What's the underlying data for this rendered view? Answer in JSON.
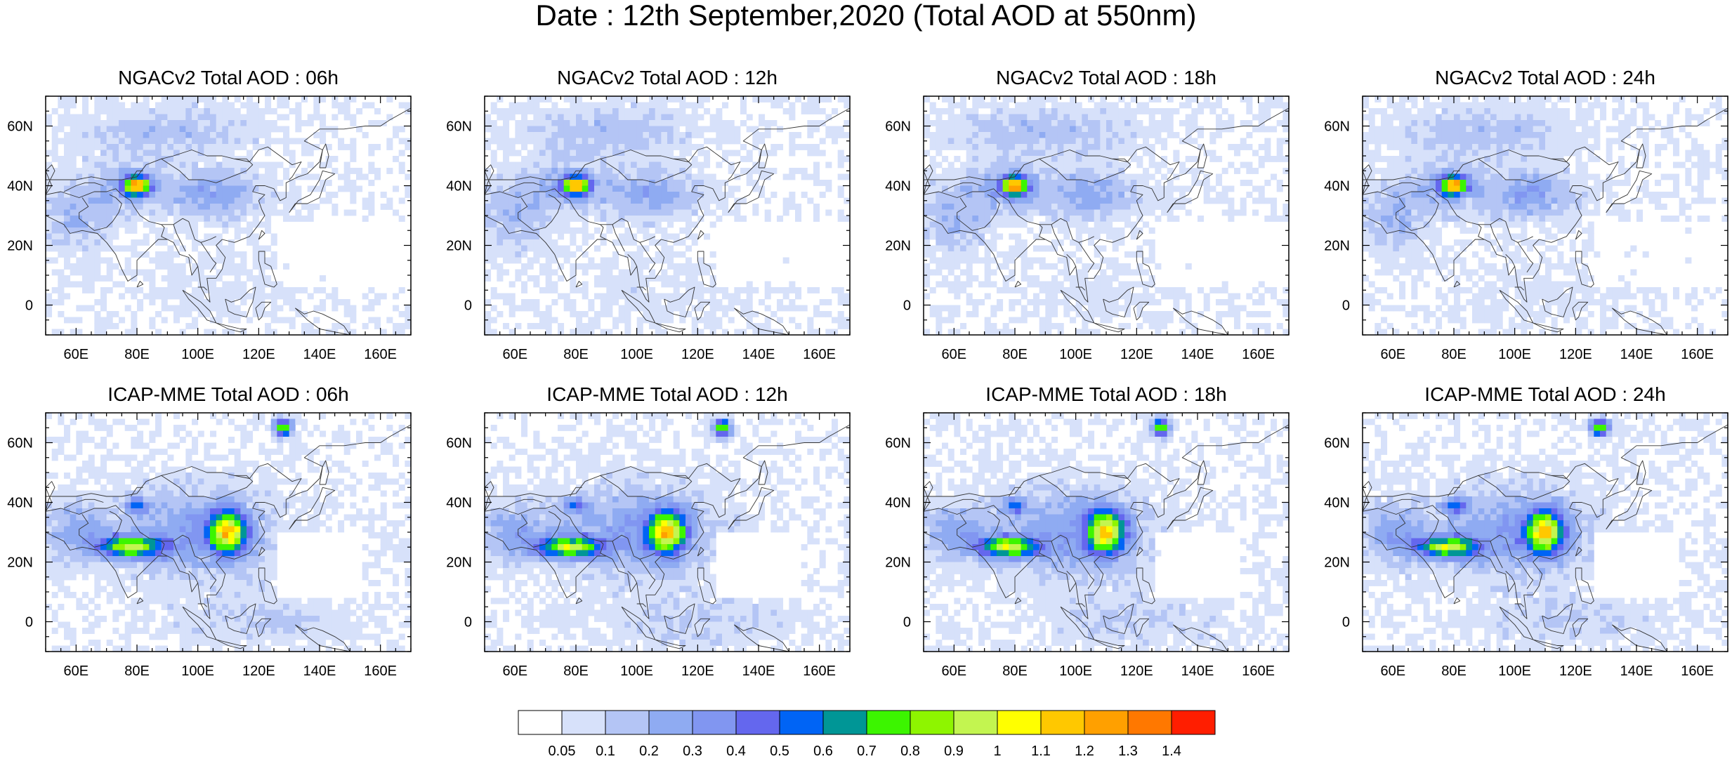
{
  "title": "Date : 12th September,2020 (Total AOD at 550nm)",
  "panels": [
    {
      "id": "ngac-06",
      "title": "NGACv2 Total AOD : 06h",
      "model": "NGACv2",
      "hour": "06h"
    },
    {
      "id": "ngac-12",
      "title": "NGACv2 Total AOD : 12h",
      "model": "NGACv2",
      "hour": "12h"
    },
    {
      "id": "ngac-18",
      "title": "NGACv2 Total AOD : 18h",
      "model": "NGACv2",
      "hour": "18h"
    },
    {
      "id": "ngac-24",
      "title": "NGACv2 Total AOD : 24h",
      "model": "NGACv2",
      "hour": "24h"
    },
    {
      "id": "icap-06",
      "title": "ICAP-MME Total AOD : 06h",
      "model": "ICAP-MME",
      "hour": "06h"
    },
    {
      "id": "icap-12",
      "title": "ICAP-MME Total AOD : 12h",
      "model": "ICAP-MME",
      "hour": "12h"
    },
    {
      "id": "icap-18",
      "title": "ICAP-MME Total AOD : 18h",
      "model": "ICAP-MME",
      "hour": "18h"
    },
    {
      "id": "icap-24",
      "title": "ICAP-MME Total AOD : 24h",
      "model": "ICAP-MME",
      "hour": "24h"
    }
  ],
  "map": {
    "lon_range": [
      50,
      170
    ],
    "lat_range": [
      -10,
      70
    ],
    "lon_ticks": [
      60,
      80,
      100,
      120,
      140,
      160
    ],
    "lon_tick_labels": [
      "60E",
      "80E",
      "100E",
      "120E",
      "140E",
      "160E"
    ],
    "lat_ticks": [
      0,
      20,
      40,
      60
    ],
    "lat_tick_labels": [
      "0",
      "20N",
      "40N",
      "60N"
    ]
  },
  "colorbar": {
    "labels": [
      "0.05",
      "0.1",
      "0.2",
      "0.3",
      "0.4",
      "0.5",
      "0.6",
      "0.7",
      "0.8",
      "0.9",
      "1",
      "1.1",
      "1.2",
      "1.3",
      "1.4"
    ],
    "colors": [
      "#ffffff",
      "#d7e1fa",
      "#b4c5f5",
      "#8fabf2",
      "#8196f1",
      "#6467ee",
      "#0064f5",
      "#009696",
      "#3cf500",
      "#8ef500",
      "#c3f550",
      "#ffff00",
      "#ffc800",
      "#ffa000",
      "#ff7800",
      "#ff1e00"
    ]
  }
}
